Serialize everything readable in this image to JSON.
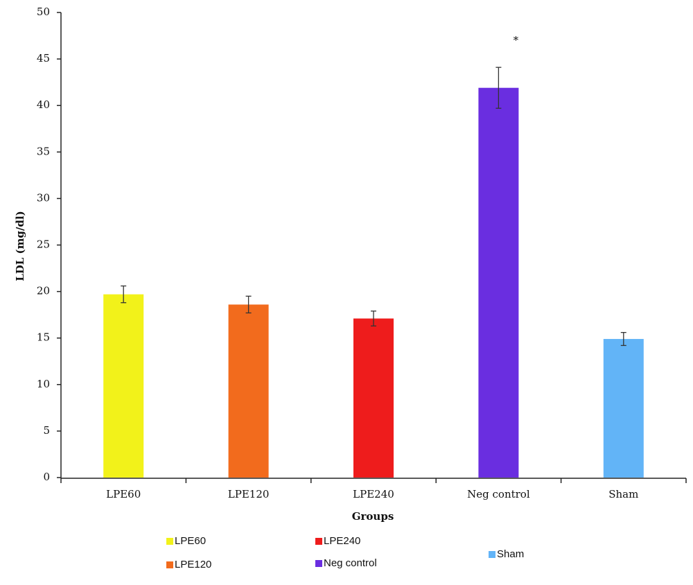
{
  "chart_data": {
    "type": "bar",
    "x_label": "Groups",
    "y_label": "LDL (mg/dl)",
    "categories": [
      "LPE60",
      "LPE120",
      "LPE240",
      "Neg control",
      "Sham"
    ],
    "values": [
      19.7,
      18.6,
      17.1,
      41.9,
      14.9
    ],
    "errors": [
      0.9,
      0.9,
      0.8,
      2.2,
      0.7
    ],
    "colors": [
      "#f2f21a",
      "#f26b1d",
      "#ee1c1c",
      "#6a2ee0",
      "#62b4f7"
    ],
    "ylim": [
      0,
      50
    ],
    "yticks": [
      0,
      5,
      10,
      15,
      20,
      25,
      30,
      35,
      40,
      45,
      50
    ],
    "grid": false,
    "annotations": [
      {
        "text": "*",
        "category": 3
      }
    ]
  }
}
